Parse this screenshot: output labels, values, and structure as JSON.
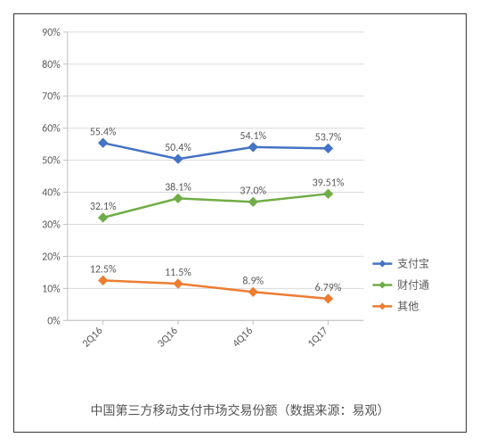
{
  "caption": {
    "text": "中国第三方移动支付市场交易份额（数据来源：易观）",
    "fontsize_pt": 14,
    "color": "#555555"
  },
  "chart": {
    "type": "line",
    "background_color": "#ffffff",
    "plot_border_color": "#d9d9d9",
    "grid_color": "#d9d9d9",
    "axis_line_color": "#bfbfbf",
    "tick_color": "#bfbfbf",
    "ylim": [
      0,
      90
    ],
    "ytick_step": 10,
    "ylabel_format_suffix": "%",
    "yaxis_label_fontsize": 12,
    "xaxis_label_fontsize": 12,
    "xaxis_label_rotation_deg": -45,
    "data_label_fontsize": 12,
    "line_width": 2.5,
    "marker_size": 5,
    "marker_style": "diamond",
    "categories": [
      "2Q16",
      "3Q16",
      "4Q16",
      "1Q17"
    ],
    "series": [
      {
        "name": "支付宝",
        "color": "#4472c4",
        "values": [
          55.4,
          50.4,
          54.1,
          53.7
        ],
        "labels": [
          "55.4%",
          "50.4%",
          "54.1%",
          "53.7%"
        ]
      },
      {
        "name": "财付通",
        "color": "#70ad47",
        "values": [
          32.1,
          38.1,
          37.0,
          39.51
        ],
        "labels": [
          "32.1%",
          "38.1%",
          "37.0%",
          "39.51%"
        ]
      },
      {
        "name": "其他",
        "color": "#ed7d31",
        "values": [
          12.5,
          11.5,
          8.9,
          6.79
        ],
        "labels": [
          "12.5%",
          "11.5%",
          "8.9%",
          "6.79%"
        ]
      }
    ],
    "legend": {
      "position": "right-bottom",
      "fontsize": 12,
      "text_color": "#595959",
      "swatch_width": 22,
      "swatch_line_width": 2.5
    }
  }
}
